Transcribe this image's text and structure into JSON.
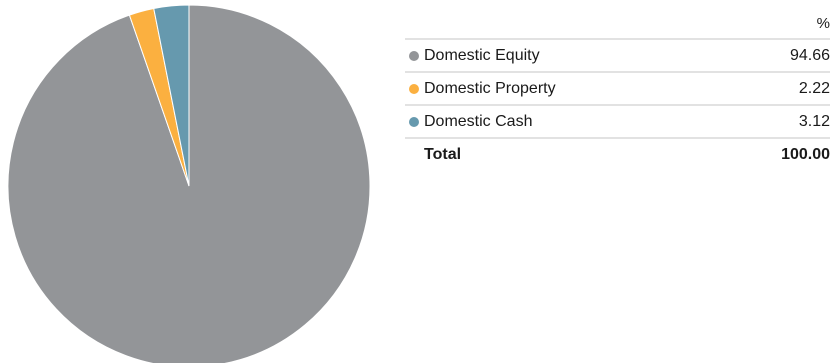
{
  "chart_data": {
    "type": "pie",
    "unit_header": "%",
    "slices": [
      {
        "label": "Domestic Equity",
        "value": 94.66,
        "display": "94.66",
        "color": "#939598"
      },
      {
        "label": "Domestic Property",
        "value": 2.22,
        "display": "2.22",
        "color": "#fbb040"
      },
      {
        "label": "Domestic Cash",
        "value": 3.12,
        "display": "3.12",
        "color": "#6699ae"
      }
    ],
    "total": {
      "label": "Total",
      "value": 100.0,
      "display": "100.00"
    }
  }
}
